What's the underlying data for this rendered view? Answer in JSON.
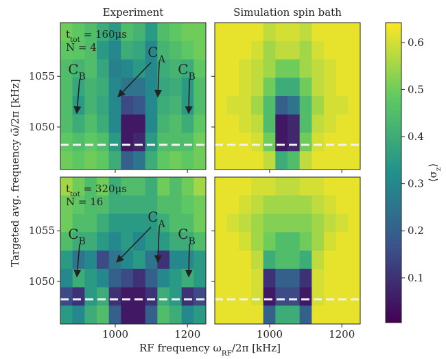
{
  "figure": {
    "xlabel": {
      "text": "RF frequency ω",
      "sub": "RF",
      "after": "/2π [kHz]"
    },
    "ylabel": "Targeted avg. frequency ω̃/2π [kHz]"
  },
  "chart_data": [
    {
      "type": "heatmap",
      "title": "Experiment",
      "xlim": [
        848,
        1251
      ],
      "ylim": [
        1045.8,
        1060.3
      ],
      "xticks": [
        1000,
        1200
      ],
      "yticks": [
        1050,
        1055
      ],
      "reference_line": 1048.24,
      "annotations": [
        {
          "text": "t",
          "sub": "tot",
          "after": " = 160μs"
        },
        {
          "text": "N = 4"
        }
      ],
      "markers": [
        {
          "text": "C",
          "sub": "B"
        },
        {
          "text": "C",
          "sub": "A"
        },
        {
          "text": "C",
          "sub": "B"
        }
      ],
      "z": [
        [
          0.5,
          0.48,
          0.45,
          0.4,
          0.35,
          0.45,
          0.42,
          0.35,
          0.45,
          0.48,
          0.5,
          0.5
        ],
        [
          0.48,
          0.47,
          0.45,
          0.35,
          0.3,
          0.4,
          0.38,
          0.3,
          0.42,
          0.45,
          0.48,
          0.5
        ],
        [
          0.45,
          0.42,
          0.45,
          0.38,
          0.28,
          0.3,
          0.35,
          0.3,
          0.4,
          0.42,
          0.4,
          0.48
        ],
        [
          0.45,
          0.38,
          0.42,
          0.4,
          0.3,
          0.25,
          0.25,
          0.3,
          0.38,
          0.4,
          0.35,
          0.45
        ],
        [
          0.45,
          0.35,
          0.42,
          0.38,
          0.3,
          0.15,
          0.18,
          0.3,
          0.4,
          0.42,
          0.35,
          0.45
        ],
        [
          0.45,
          0.4,
          0.45,
          0.4,
          0.3,
          0.05,
          0.05,
          0.3,
          0.42,
          0.45,
          0.4,
          0.48
        ],
        [
          0.48,
          0.45,
          0.48,
          0.45,
          0.35,
          0.05,
          0.08,
          0.35,
          0.45,
          0.45,
          0.45,
          0.5
        ],
        [
          0.5,
          0.48,
          0.5,
          0.48,
          0.4,
          0.2,
          0.25,
          0.4,
          0.48,
          0.5,
          0.48,
          0.5
        ]
      ]
    },
    {
      "type": "heatmap",
      "title": "Simulation spin bath",
      "xlim": [
        848,
        1251
      ],
      "ylim": [
        1045.8,
        1060.3
      ],
      "xticks": [
        1000,
        1200
      ],
      "yticks": [
        1050,
        1055
      ],
      "reference_line": 1048.24,
      "z": [
        [
          0.62,
          0.62,
          0.62,
          0.62,
          0.58,
          0.6,
          0.6,
          0.58,
          0.62,
          0.62,
          0.62,
          0.62
        ],
        [
          0.62,
          0.62,
          0.62,
          0.6,
          0.55,
          0.58,
          0.58,
          0.55,
          0.6,
          0.62,
          0.62,
          0.62
        ],
        [
          0.62,
          0.62,
          0.6,
          0.58,
          0.55,
          0.5,
          0.5,
          0.55,
          0.58,
          0.6,
          0.62,
          0.62
        ],
        [
          0.62,
          0.62,
          0.6,
          0.58,
          0.5,
          0.4,
          0.4,
          0.5,
          0.58,
          0.6,
          0.62,
          0.62
        ],
        [
          0.62,
          0.6,
          0.6,
          0.55,
          0.45,
          0.2,
          0.25,
          0.45,
          0.55,
          0.6,
          0.6,
          0.62
        ],
        [
          0.62,
          0.62,
          0.6,
          0.58,
          0.45,
          0.05,
          0.08,
          0.45,
          0.58,
          0.6,
          0.62,
          0.62
        ],
        [
          0.62,
          0.62,
          0.62,
          0.6,
          0.5,
          0.05,
          0.08,
          0.5,
          0.6,
          0.62,
          0.62,
          0.62
        ],
        [
          0.62,
          0.62,
          0.62,
          0.62,
          0.58,
          0.4,
          0.45,
          0.58,
          0.62,
          0.62,
          0.62,
          0.62
        ]
      ]
    },
    {
      "type": "heatmap",
      "xlim": [
        848,
        1251
      ],
      "ylim": [
        1045.8,
        1060.3
      ],
      "xticks": [
        1000,
        1200
      ],
      "yticks": [
        1050,
        1055
      ],
      "reference_line": 1048.24,
      "annotations": [
        {
          "text": "t",
          "sub": "tot",
          "after": " = 320μs"
        },
        {
          "text": "N = 16"
        }
      ],
      "markers": [
        {
          "text": "C",
          "sub": "B"
        },
        {
          "text": "C",
          "sub": "A"
        },
        {
          "text": "C",
          "sub": "B"
        }
      ],
      "z": [
        [
          0.55,
          0.5,
          0.45,
          0.5,
          0.4,
          0.45,
          0.45,
          0.4,
          0.5,
          0.45,
          0.5,
          0.55
        ],
        [
          0.5,
          0.48,
          0.45,
          0.45,
          0.4,
          0.4,
          0.4,
          0.4,
          0.45,
          0.45,
          0.48,
          0.5
        ],
        [
          0.5,
          0.45,
          0.45,
          0.4,
          0.35,
          0.35,
          0.35,
          0.35,
          0.4,
          0.45,
          0.45,
          0.5
        ],
        [
          0.45,
          0.4,
          0.4,
          0.35,
          0.3,
          0.35,
          0.3,
          0.35,
          0.35,
          0.4,
          0.4,
          0.45
        ],
        [
          0.35,
          0.25,
          0.3,
          0.15,
          0.25,
          0.3,
          0.35,
          0.25,
          0.1,
          0.3,
          0.3,
          0.35
        ],
        [
          0.3,
          0.4,
          0.35,
          0.3,
          0.2,
          0.15,
          0.1,
          0.2,
          0.3,
          0.35,
          0.4,
          0.35
        ],
        [
          0.15,
          0.1,
          0.35,
          0.4,
          0.1,
          0.05,
          0.05,
          0.1,
          0.4,
          0.35,
          0.1,
          0.15
        ],
        [
          0.35,
          0.3,
          0.4,
          0.45,
          0.2,
          0.05,
          0.05,
          0.2,
          0.45,
          0.4,
          0.3,
          0.35
        ]
      ]
    },
    {
      "type": "heatmap",
      "xlim": [
        848,
        1251
      ],
      "ylim": [
        1045.8,
        1060.3
      ],
      "xticks": [
        1000,
        1200
      ],
      "yticks": [
        1050,
        1055
      ],
      "reference_line": 1048.24,
      "z": [
        [
          0.62,
          0.62,
          0.62,
          0.6,
          0.6,
          0.58,
          0.58,
          0.6,
          0.6,
          0.62,
          0.62,
          0.62
        ],
        [
          0.62,
          0.62,
          0.6,
          0.58,
          0.55,
          0.55,
          0.55,
          0.55,
          0.58,
          0.6,
          0.62,
          0.62
        ],
        [
          0.62,
          0.6,
          0.58,
          0.55,
          0.52,
          0.52,
          0.52,
          0.52,
          0.55,
          0.58,
          0.6,
          0.62
        ],
        [
          0.62,
          0.62,
          0.6,
          0.55,
          0.5,
          0.45,
          0.45,
          0.5,
          0.55,
          0.6,
          0.62,
          0.62
        ],
        [
          0.62,
          0.62,
          0.62,
          0.58,
          0.4,
          0.45,
          0.45,
          0.4,
          0.58,
          0.62,
          0.62,
          0.62
        ],
        [
          0.62,
          0.62,
          0.62,
          0.6,
          0.1,
          0.2,
          0.2,
          0.1,
          0.6,
          0.62,
          0.62,
          0.62
        ],
        [
          0.62,
          0.62,
          0.62,
          0.6,
          0.05,
          0.15,
          0.15,
          0.05,
          0.6,
          0.62,
          0.62,
          0.62
        ],
        [
          0.62,
          0.62,
          0.62,
          0.62,
          0.2,
          0.4,
          0.4,
          0.2,
          0.62,
          0.62,
          0.62,
          0.62
        ]
      ]
    },
    {
      "type": "colorbar",
      "label": {
        "text": "⟨σ",
        "sub": "z",
        "after": "⟩"
      },
      "clim": [
        0.005,
        0.642
      ],
      "ticks": [
        0.1,
        0.2,
        0.3,
        0.4,
        0.5,
        0.6
      ]
    }
  ]
}
